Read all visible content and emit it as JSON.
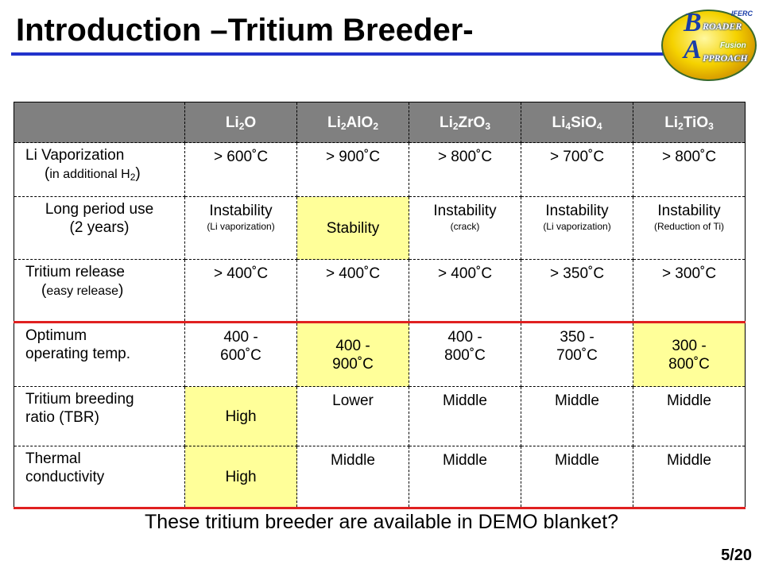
{
  "title": "Introduction –Tritium Breeder-",
  "logo": {
    "b": "B",
    "roader": "ROADER",
    "a": "A",
    "pproach": "PPROACH",
    "iferc": "IFERC",
    "fusion": "Fusion"
  },
  "table": {
    "headers": [
      {
        "base1": "Li",
        "sub1": "2",
        "base2": "O",
        "sub2": "",
        "base3": "",
        "sub3": ""
      },
      {
        "base1": "Li",
        "sub1": "2",
        "base2": "AlO",
        "sub2": "2",
        "base3": "",
        "sub3": ""
      },
      {
        "base1": "Li",
        "sub1": "2",
        "base2": "ZrO",
        "sub2": "3",
        "base3": "",
        "sub3": ""
      },
      {
        "base1": "Li",
        "sub1": "4",
        "base2": "SiO",
        "sub2": "4",
        "base3": "",
        "sub3": ""
      },
      {
        "base1": "Li",
        "sub1": "2",
        "base2": "TiO",
        "sub2": "3",
        "base3": "",
        "sub3": ""
      }
    ],
    "rows": [
      {
        "label": "Li Vaporization",
        "label_sub_pre": "(",
        "label_sub": "in additional H",
        "label_sub_sub": "2",
        "label_sub_post": ")",
        "cells": [
          "> 600˚C",
          "> 900˚C",
          "> 800˚C",
          "> 700˚C",
          "> 800˚C"
        ]
      },
      {
        "label": "Long period use",
        "label2": "(2 years)",
        "cells": [
          {
            "main": "Instability",
            "note": "(Li vaporization)"
          },
          {
            "main": "Stability",
            "note": ""
          },
          {
            "main": "Instability",
            "note": "(crack)"
          },
          {
            "main": "Instability",
            "note": "(Li vaporization)"
          },
          {
            "main": "Instability",
            "note": "(Reduction of Ti)"
          }
        ]
      },
      {
        "label": "Tritium release",
        "label_sub_pre": "(",
        "label_sub": "easy release",
        "label_sub_post": ")",
        "cells": [
          "> 400˚C",
          "> 400˚C",
          "> 400˚C",
          "> 350˚C",
          "> 300˚C"
        ]
      },
      {
        "label": "Optimum",
        "label2": "operating temp.",
        "cells": [
          {
            "l1": "400 -",
            "l2": "600˚C"
          },
          {
            "l1": "400 -",
            "l2": "900˚C"
          },
          {
            "l1": "400 -",
            "l2": "800˚C"
          },
          {
            "l1": "350 -",
            "l2": "700˚C"
          },
          {
            "l1": "300 -",
            "l2": "800˚C"
          }
        ]
      },
      {
        "label": "Tritium breeding",
        "label2": "ratio (TBR)",
        "cells": [
          "High",
          "Lower",
          "Middle",
          "Middle",
          "Middle"
        ]
      },
      {
        "label": "Thermal",
        "label2": "conductivity",
        "cells": [
          "High",
          "Middle",
          "Middle",
          "Middle",
          "Middle"
        ]
      }
    ]
  },
  "highlight_color": "#ffff99",
  "accent_red": "#e02020",
  "title_rule_color": "#2233cc",
  "header_bg": "#808080",
  "question": "These tritium breeder are available in DEMO blanket?",
  "page_number": "5/20"
}
